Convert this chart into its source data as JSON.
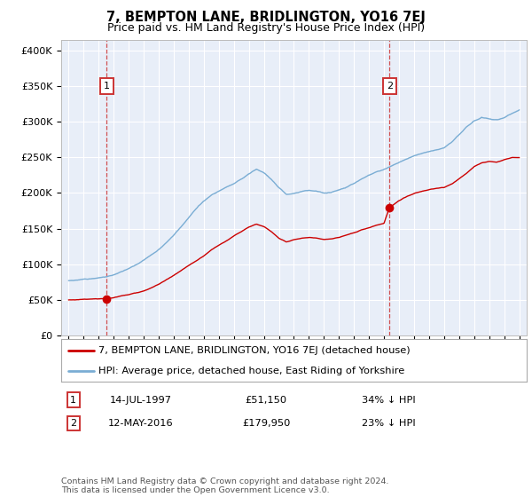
{
  "title": "7, BEMPTON LANE, BRIDLINGTON, YO16 7EJ",
  "subtitle": "Price paid vs. HM Land Registry's House Price Index (HPI)",
  "ylabel_ticks": [
    "£0",
    "£50K",
    "£100K",
    "£150K",
    "£200K",
    "£250K",
    "£300K",
    "£350K",
    "£400K"
  ],
  "ytick_values": [
    0,
    50000,
    100000,
    150000,
    200000,
    250000,
    300000,
    350000,
    400000
  ],
  "ylim": [
    0,
    415000
  ],
  "xlim_start": 1994.5,
  "xlim_end": 2025.5,
  "sale1_x": 1997.54,
  "sale1_y": 51150,
  "sale1_label": "1",
  "sale1_date": "14-JUL-1997",
  "sale1_price": "£51,150",
  "sale1_hpi": "34% ↓ HPI",
  "sale2_x": 2016.36,
  "sale2_y": 179950,
  "sale2_label": "2",
  "sale2_date": "12-MAY-2016",
  "sale2_price": "£179,950",
  "sale2_hpi": "23% ↓ HPI",
  "legend1": "7, BEMPTON LANE, BRIDLINGTON, YO16 7EJ (detached house)",
  "legend2": "HPI: Average price, detached house, East Riding of Yorkshire",
  "footer": "Contains HM Land Registry data © Crown copyright and database right 2024.\nThis data is licensed under the Open Government Licence v3.0.",
  "line_color_red": "#cc0000",
  "line_color_blue": "#7aadd4",
  "plot_bg": "#e8eef8",
  "grid_color": "#ffffff",
  "box_color": "#cc3333",
  "title_fontsize": 10.5,
  "subtitle_fontsize": 9
}
